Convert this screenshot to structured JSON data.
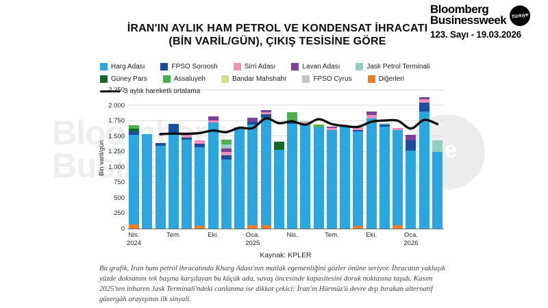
{
  "header": {
    "brand_line1": "Bloomberg",
    "brand_line2": "Businessweek",
    "badge": "Türkiye",
    "issue": "123. Sayı - 19.03.2026"
  },
  "title": {
    "line1": "İRAN'IN AYLIK HAM PETROL VE KONDENSAT İHRACATI",
    "line2": "(BİN VARİL/GÜN), ÇIKIŞ TESİSİNE GÖRE"
  },
  "legend": [
    {
      "id": "harg",
      "label": "Harg Adası",
      "type": "swatch"
    },
    {
      "id": "soroosh",
      "label": "FPSO Soroosh",
      "type": "swatch"
    },
    {
      "id": "sirri",
      "label": "Sirri Adası",
      "type": "swatch"
    },
    {
      "id": "lavan",
      "label": "Lavan Adası",
      "type": "swatch"
    },
    {
      "id": "jask",
      "label": "Jask Petrol Terminali",
      "type": "swatch"
    },
    {
      "id": "guney_pars",
      "label": "Güney Pars",
      "type": "swatch"
    },
    {
      "id": "assaluyeh",
      "label": "Assaluyeh",
      "type": "swatch"
    },
    {
      "id": "bandar",
      "label": "Bandar Mahshahr",
      "type": "swatch"
    },
    {
      "id": "cyrus",
      "label": "FPSO Cyrus",
      "type": "swatch"
    },
    {
      "id": "digerleri",
      "label": "Diğerleri",
      "type": "swatch"
    },
    {
      "id": "ma",
      "label": "3 aylık hareketli ortalama",
      "type": "line"
    }
  ],
  "chart_data": {
    "type": "stacked-bar-with-line",
    "ylabel": "Bin varil/gün",
    "ylim": [
      0,
      2250
    ],
    "ytick_step": 250,
    "ytick_labels": [
      "0",
      "250",
      "500",
      "750",
      "1.000",
      "1.250",
      "1.500",
      "1.750",
      "2.000",
      "2.250"
    ],
    "grid": true,
    "colors": {
      "harg": "#2CA6DF",
      "soroosh": "#1C4E9D",
      "sirri": "#F290B9",
      "lavan": "#7E3F98",
      "jask": "#8FD0C3",
      "guney_pars": "#14672D",
      "assaluyeh": "#4CAE4F",
      "bandar": "#D8DE8D",
      "cyrus": "#C4C4C4",
      "digerleri": "#EE7D23",
      "ma_line": "#0d0d0d"
    },
    "stack_order": [
      "digerleri",
      "harg",
      "soroosh",
      "sirri",
      "lavan",
      "jask",
      "guney_pars",
      "assaluyeh",
      "bandar",
      "cyrus"
    ],
    "x_tick_labels": [
      {
        "index": 0,
        "month": "Nis.",
        "year": "2024"
      },
      {
        "index": 3,
        "month": "Tem.",
        "year": ""
      },
      {
        "index": 6,
        "month": "Eki.",
        "year": ""
      },
      {
        "index": 9,
        "month": "Oca.",
        "year": "2025"
      },
      {
        "index": 12,
        "month": "Nis.",
        "year": ""
      },
      {
        "index": 15,
        "month": "Tem.",
        "year": ""
      },
      {
        "index": 18,
        "month": "Eki.",
        "year": ""
      },
      {
        "index": 21,
        "month": "Oca.",
        "year": "2026"
      }
    ],
    "bars": [
      {
        "month": "Nis. 2024",
        "segments": {
          "digerleri": 70,
          "harg": 1450,
          "soroosh": 55,
          "guney_pars": 40,
          "assaluyeh": 55
        }
      },
      {
        "month": "May. 2024",
        "segments": {
          "harg": 1530
        }
      },
      {
        "month": "Haz. 2024",
        "segments": {
          "harg": 1340,
          "soroosh": 50
        }
      },
      {
        "month": "Tem. 2024",
        "segments": {
          "harg": 1555,
          "soroosh": 140
        }
      },
      {
        "month": "Ağu. 2024",
        "segments": {
          "harg": 1440,
          "soroosh": 35,
          "sirri": 45
        }
      },
      {
        "month": "Eyl. 2024",
        "segments": {
          "digerleri": 40,
          "harg": 1280,
          "soroosh": 55,
          "sirri": 55
        }
      },
      {
        "month": "Eki. 2024",
        "segments": {
          "harg": 1720,
          "sirri": 35,
          "lavan": 60
        }
      },
      {
        "month": "Kas. 2024",
        "segments": {
          "harg": 1125,
          "soroosh": 65,
          "sirri": 55,
          "lavan": 50,
          "jask": 70,
          "assaluyeh": 80
        }
      },
      {
        "month": "Ara. 2024",
        "segments": {
          "harg": 1640
        }
      },
      {
        "month": "Oca. 2025",
        "segments": {
          "digerleri": 60,
          "harg": 1630,
          "soroosh": 45,
          "lavan": 60
        }
      },
      {
        "month": "Şub. 2025",
        "segments": {
          "digerleri": 60,
          "harg": 1740,
          "soroosh": 55,
          "sirri": 35,
          "lavan": 25
        }
      },
      {
        "month": "Mar. 2025",
        "segments": {
          "harg": 1280,
          "guney_pars": 130
        }
      },
      {
        "month": "Nis. 2025",
        "segments": {
          "harg": 1700,
          "soroosh": 45,
          "assaluyeh": 145
        }
      },
      {
        "month": "May. 2025",
        "segments": {
          "harg": 1680,
          "sirri": 35,
          "cyrus": 30
        }
      },
      {
        "month": "Haz. 2025",
        "segments": {
          "harg": 1640,
          "assaluyeh": 40
        }
      },
      {
        "month": "Tem. 2025",
        "segments": {
          "harg": 1600,
          "sirri": 30,
          "lavan": 25
        }
      },
      {
        "month": "Ağu. 2025",
        "segments": {
          "harg": 1650
        }
      },
      {
        "month": "Eyl. 2025",
        "segments": {
          "digerleri": 50,
          "harg": 1520,
          "soroosh": 30,
          "sirri": 40
        }
      },
      {
        "month": "Eki. 2025",
        "segments": {
          "harg": 1785,
          "sirri": 50,
          "lavan": 65
        }
      },
      {
        "month": "Kas. 2025",
        "segments": {
          "harg": 1650,
          "soroosh": 40,
          "jask": 20
        }
      },
      {
        "month": "Ara. 2025",
        "segments": {
          "digerleri": 55,
          "harg": 1545,
          "sirri": 30
        }
      },
      {
        "month": "Oca. 2026",
        "segments": {
          "harg": 1265,
          "soroosh": 165,
          "lavan": 90
        }
      },
      {
        "month": "Şub. 2026",
        "segments": {
          "harg": 1900,
          "soroosh": 135,
          "sirri": 65,
          "lavan": 30
        }
      },
      {
        "month": "Mar. 2026",
        "segments": {
          "harg": 1245,
          "jask": 180
        }
      }
    ],
    "moving_average": [
      null,
      null,
      1530,
      1538,
      1535,
      1548,
      1588,
      1563,
      1633,
      1627,
      1783,
      1707,
      1738,
      1682,
      1772,
      1693,
      1662,
      1648,
      1730,
      1750,
      1747,
      1620,
      1760,
      1692
    ],
    "ma_legend_label": "3 aylık hareketli ortalama"
  },
  "source": "Kaynak: KPLER",
  "annotation": "Bu grafik, İran ham petrol ihracatında Kharg Adası'nın mutlak egemenliğini gözler önüne seriyor. İhracatın yaklaşık yüzde doksanını tek başına karşılayan bu küçük ada, savaş öncesinde kapasitesini doruk noktasına taşıdı. Kasım 2025'ten itibaren Jask Terminali'ndeki canlanma ise dikkat çekici: İran'ın Hürmüz'ü devre dışı bırakan alternatif güzergâh arayışının ilk sinyali.",
  "watermarks": {
    "left_line1": "Bloomberg",
    "left_line2": "Businessw",
    "circle_text": "rkiye"
  }
}
